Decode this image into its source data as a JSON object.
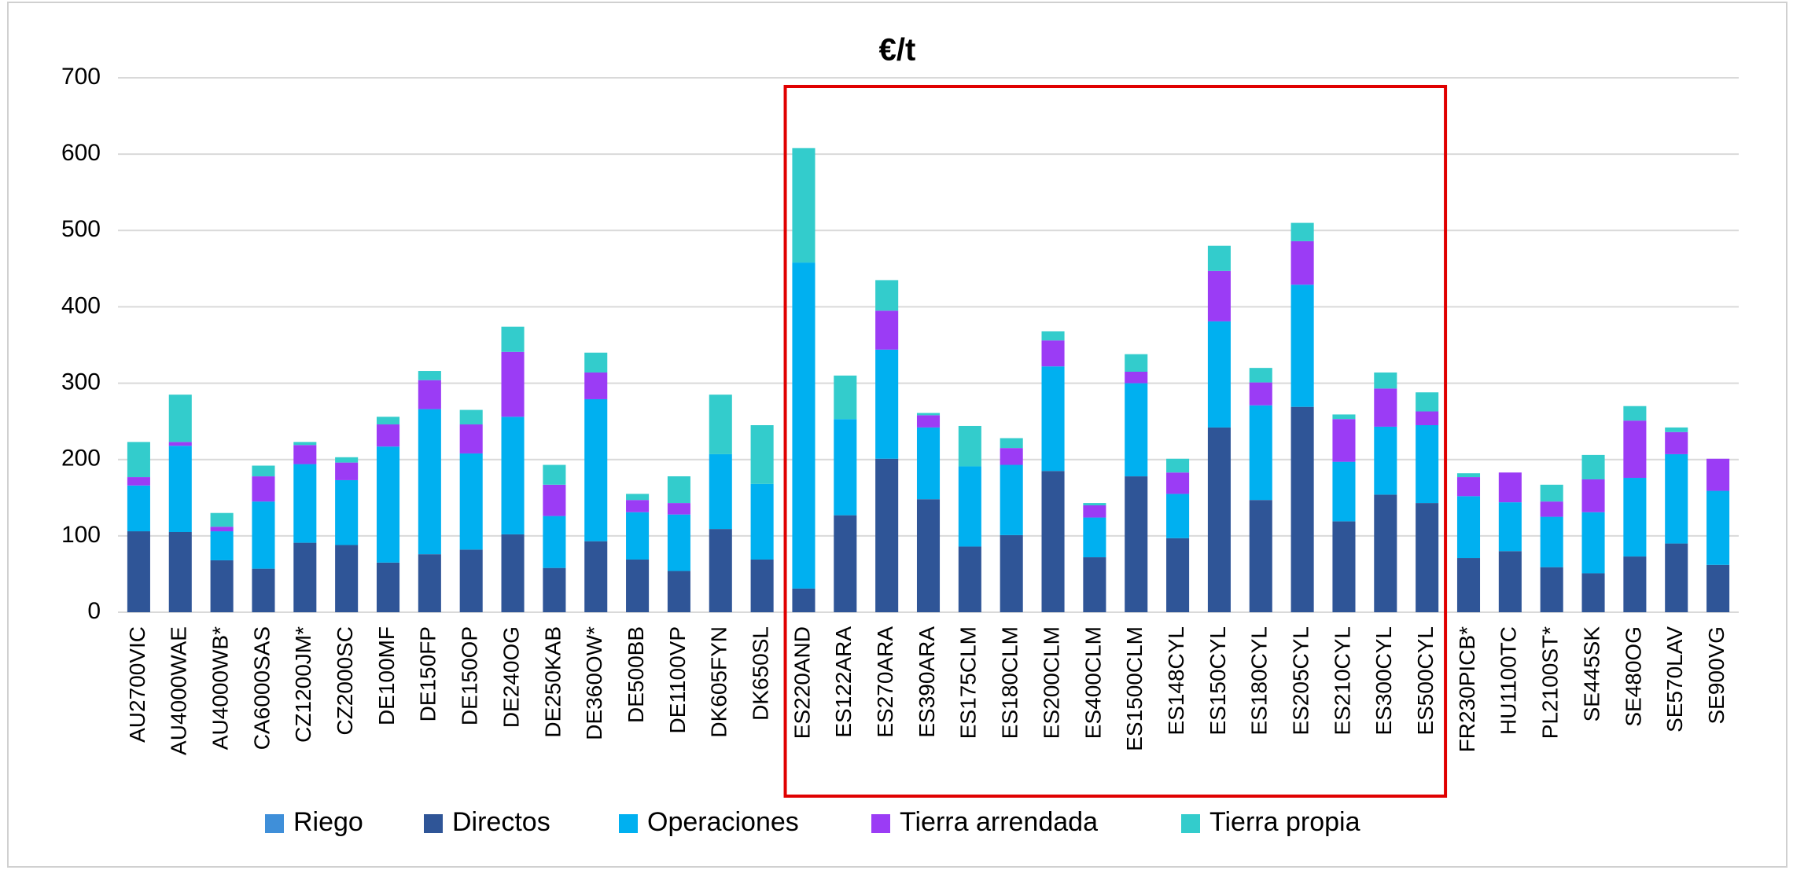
{
  "chart_data": {
    "type": "stacked_bar",
    "title": "€/t",
    "categories": [
      "AU2700VIC",
      "AU4000WAE",
      "AU4000WB*",
      "CA6000SAS",
      "CZ1200JM*",
      "CZ2000SC",
      "DE100MF",
      "DE150FP",
      "DE150OP",
      "DE240OG",
      "DE250KAB",
      "DE360OW*",
      "DE500BB",
      "DE1100VP",
      "DK605FYN",
      "DK650SL",
      "ES220AND",
      "ES122ARA",
      "ES270ARA",
      "ES390ARA",
      "ES175CLM",
      "ES180CLM",
      "ES200CLM",
      "ES400CLM",
      "ES1500CLM",
      "ES148CYL",
      "ES150CYL",
      "ES180CYL",
      "ES205CYL",
      "ES210CYL",
      "ES300CYL",
      "ES500CYL",
      "FR230PICB*",
      "HU1100TC",
      "PL2100ST*",
      "SE445SK",
      "SE480OG",
      "SE570LAV",
      "SE900VG"
    ],
    "series": [
      {
        "name": "Riego",
        "color": "#3f8fd9",
        "values": [
          0,
          0,
          0,
          0,
          0,
          0,
          0,
          0,
          0,
          0,
          0,
          0,
          0,
          0,
          0,
          0,
          0,
          0,
          0,
          0,
          0,
          0,
          0,
          0,
          0,
          0,
          0,
          0,
          0,
          0,
          0,
          0,
          0,
          0,
          0,
          0,
          0,
          0,
          0
        ]
      },
      {
        "name": "Directos",
        "color": "#2f5597",
        "values": [
          106,
          105,
          68,
          57,
          91,
          88,
          65,
          76,
          82,
          102,
          58,
          93,
          69,
          54,
          109,
          69,
          31,
          127,
          201,
          148,
          86,
          101,
          185,
          72,
          178,
          97,
          242,
          147,
          269,
          119,
          154,
          143,
          71,
          80,
          59,
          51,
          73,
          90,
          62
        ]
      },
      {
        "name": "Operaciones",
        "color": "#00b0f0",
        "values": [
          60,
          113,
          38,
          88,
          103,
          85,
          152,
          190,
          126,
          154,
          68,
          186,
          62,
          74,
          98,
          99,
          427,
          126,
          143,
          94,
          105,
          92,
          137,
          52,
          122,
          58,
          139,
          124,
          160,
          78,
          89,
          102,
          81,
          64,
          66,
          80,
          103,
          117,
          97
        ]
      },
      {
        "name": "Tierra arrendada",
        "color": "#9b3cf5",
        "values": [
          11,
          5,
          6,
          33,
          25,
          23,
          29,
          38,
          38,
          85,
          41,
          35,
          16,
          15,
          0,
          0,
          0,
          0,
          51,
          16,
          0,
          22,
          34,
          16,
          15,
          28,
          66,
          30,
          57,
          56,
          50,
          18,
          25,
          39,
          20,
          43,
          75,
          29,
          42
        ]
      },
      {
        "name": "Tierra propia",
        "color": "#33cccc",
        "values": [
          46,
          62,
          18,
          14,
          4,
          7,
          10,
          12,
          19,
          33,
          26,
          26,
          8,
          35,
          78,
          77,
          150,
          57,
          40,
          3,
          53,
          13,
          12,
          3,
          23,
          18,
          33,
          19,
          24,
          6,
          21,
          25,
          5,
          0,
          22,
          32,
          19,
          6,
          0
        ]
      }
    ],
    "ylim": [
      0,
      700
    ],
    "yticks": [
      0,
      100,
      200,
      300,
      400,
      500,
      600,
      700
    ],
    "grid": true,
    "legend": "bottom"
  }
}
